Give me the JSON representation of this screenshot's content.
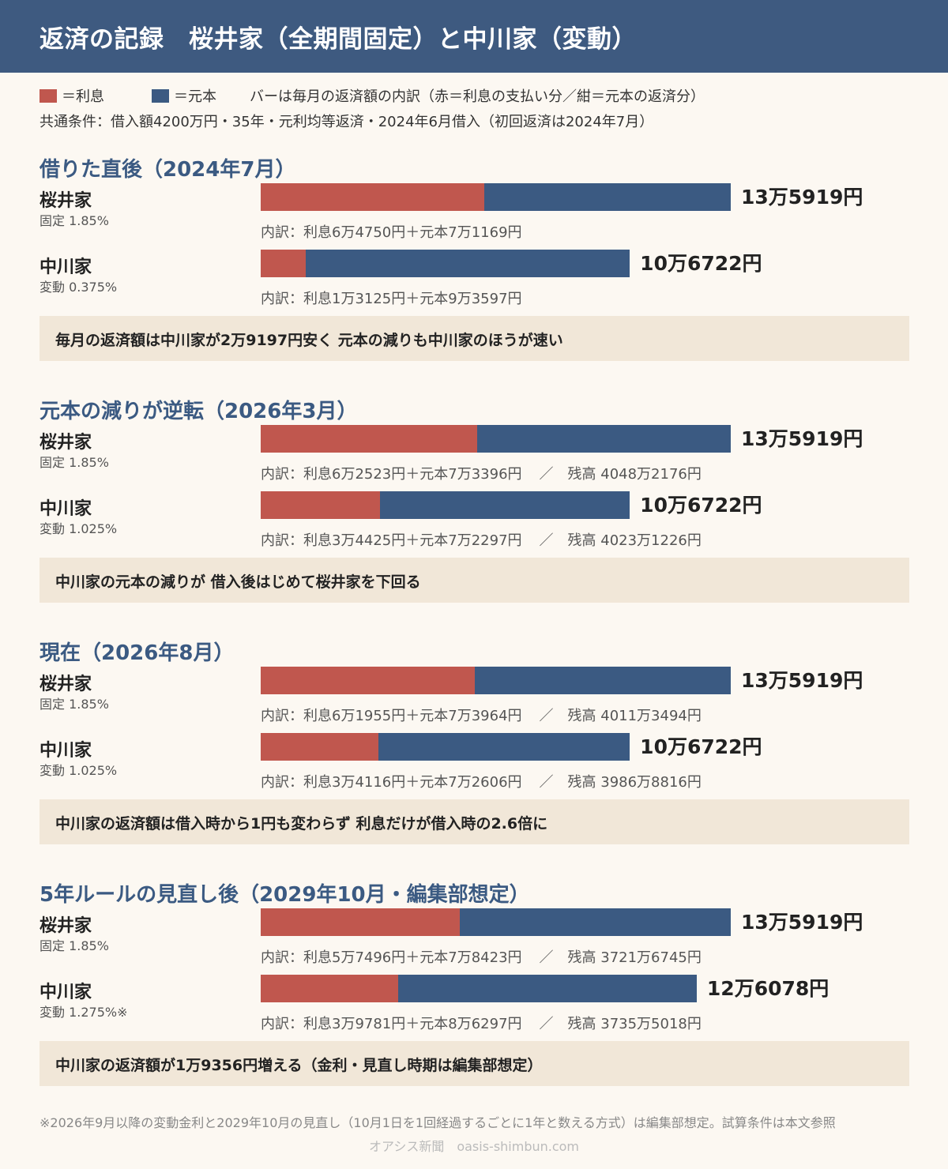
{
  "header": {
    "title": "返済の記録　桜井家（全期間固定）と中川家（変動）"
  },
  "legend": {
    "interest_label": "＝利息",
    "principal_label": "＝元本",
    "description": "バーは毎月の返済額の内訳（赤＝利息の支払い分／紺＝元本の返済分）",
    "conditions": "共通条件：借入額4200万円・35年・元利均等返済・2024年6月借入（初回返済は2024年7月）"
  },
  "colors": {
    "interest": "#c0574e",
    "principal": "#3b5a82",
    "header_bg": "#3e5a80",
    "note_bg": "#f1e7d8"
  },
  "chart_data": {
    "type": "bar",
    "orientation": "horizontal",
    "stacked": true,
    "unit": "円",
    "series_order": [
      "利息",
      "元本"
    ],
    "panels": [
      {
        "title": "借りた直後（2024年7月）",
        "rows": [
          {
            "family": "桜井家",
            "rate": "固定 1.85%",
            "interest": 64750,
            "principal": 71169,
            "total": 135919,
            "total_label": "13万5919円",
            "breakdown": "内訳：利息6万4750円＋元本7万1169円",
            "balance": ""
          },
          {
            "family": "中川家",
            "rate": "変動 0.375%",
            "interest": 13125,
            "principal": 93597,
            "total": 106722,
            "total_label": "10万6722円",
            "breakdown": "内訳：利息1万3125円＋元本9万3597円",
            "balance": ""
          }
        ],
        "note": "毎月の返済額は中川家が2万9197円安く 元本の減りも中川家のほうが速い"
      },
      {
        "title": "元本の減りが逆転（2026年3月）",
        "rows": [
          {
            "family": "桜井家",
            "rate": "固定 1.85%",
            "interest": 62523,
            "principal": 73396,
            "total": 135919,
            "total_label": "13万5919円",
            "breakdown": "内訳：利息6万2523円＋元本7万3396円",
            "balance": "残高 4048万2176円"
          },
          {
            "family": "中川家",
            "rate": "変動 1.025%",
            "interest": 34425,
            "principal": 72297,
            "total": 106722,
            "total_label": "10万6722円",
            "breakdown": "内訳：利息3万4425円＋元本7万2297円",
            "balance": "残高 4023万1226円"
          }
        ],
        "note": "中川家の元本の減りが 借入後はじめて桜井家を下回る"
      },
      {
        "title": "現在（2026年8月）",
        "rows": [
          {
            "family": "桜井家",
            "rate": "固定 1.85%",
            "interest": 61955,
            "principal": 73964,
            "total": 135919,
            "total_label": "13万5919円",
            "breakdown": "内訳：利息6万1955円＋元本7万3964円",
            "balance": "残高 4011万3494円"
          },
          {
            "family": "中川家",
            "rate": "変動 1.025%",
            "interest": 34116,
            "principal": 72606,
            "total": 106722,
            "total_label": "10万6722円",
            "breakdown": "内訳：利息3万4116円＋元本7万2606円",
            "balance": "残高 3986万8816円"
          }
        ],
        "note": "中川家の返済額は借入時から1円も変わらず 利息だけが借入時の2.6倍に"
      },
      {
        "title": "5年ルールの見直し後（2029年10月・編集部想定）",
        "rows": [
          {
            "family": "桜井家",
            "rate": "固定 1.85%",
            "interest": 57496,
            "principal": 78423,
            "total": 135919,
            "total_label": "13万5919円",
            "breakdown": "内訳：利息5万7496円＋元本7万8423円",
            "balance": "残高 3721万6745円"
          },
          {
            "family": "中川家",
            "rate": "変動 1.275%※",
            "interest": 39781,
            "principal": 86297,
            "total": 126078,
            "total_label": "12万6078円",
            "breakdown": "内訳：利息3万9781円＋元本8万6297円",
            "balance": "残高 3735万5018円"
          }
        ],
        "note": "中川家の返済額が1万9356円増える（金利・見直し時期は編集部想定）"
      }
    ]
  },
  "footnote": "※2026年9月以降の変動金利と2029年10月の見直し（10月1日を1回経過するごとに1年と数える方式）は編集部想定。試算条件は本文参照",
  "credit": "オアシス新聞　oasis-shimbun.com"
}
